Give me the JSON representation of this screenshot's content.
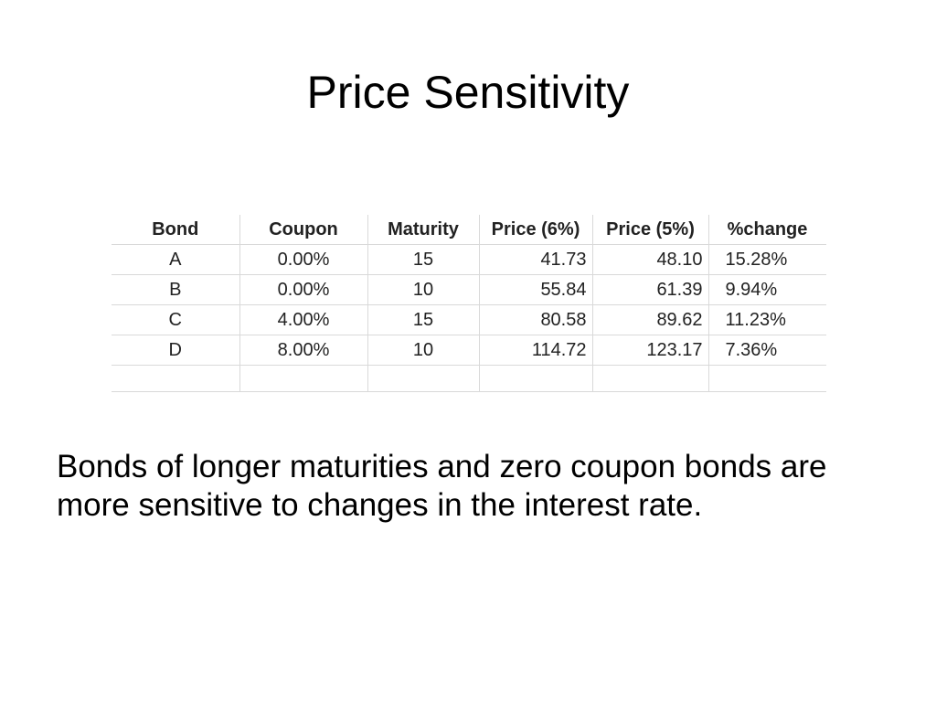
{
  "slide": {
    "title": "Price Sensitivity",
    "body": "Bonds of longer maturities and zero coupon bonds are more sensitive to changes in the interest rate."
  },
  "table": {
    "headers": [
      "Bond",
      "Coupon",
      "Maturity",
      "Price (6%)",
      "Price (5%)",
      "%change"
    ],
    "rows": [
      [
        "A",
        "0.00%",
        "15",
        "41.73",
        "48.10",
        "15.28%"
      ],
      [
        "B",
        "0.00%",
        "10",
        "55.84",
        "61.39",
        "9.94%"
      ],
      [
        "C",
        "4.00%",
        "15",
        "80.58",
        "89.62",
        "11.23%"
      ],
      [
        "D",
        "8.00%",
        "10",
        "114.72",
        "123.17",
        "7.36%"
      ]
    ]
  }
}
